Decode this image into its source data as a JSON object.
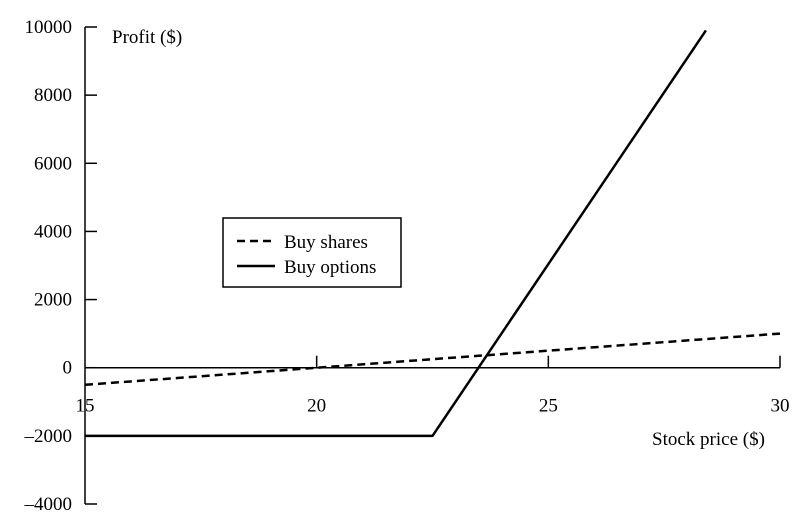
{
  "chart_data": {
    "type": "line",
    "xlabel": "Stock price ($)",
    "ylabel": "Profit ($)",
    "xlim": [
      15,
      30
    ],
    "ylim": [
      -4000,
      10000
    ],
    "x_ticks": [
      "15",
      "20",
      "25",
      "30"
    ],
    "x_tick_values": [
      15,
      20,
      25,
      30
    ],
    "y_ticks": [
      "10000",
      "8000",
      "6000",
      "4000",
      "2000",
      "0",
      "–2000",
      "–4000"
    ],
    "y_tick_values": [
      10000,
      8000,
      6000,
      4000,
      2000,
      0,
      -2000,
      -4000
    ],
    "grid": false,
    "legend_position": "center-left",
    "series": [
      {
        "name": "Buy shares",
        "style": "dashed",
        "color": "#000000",
        "points": [
          [
            15,
            -500
          ],
          [
            30,
            1000
          ]
        ]
      },
      {
        "name": "Buy options",
        "style": "solid",
        "color": "#000000",
        "points": [
          [
            15,
            -2000
          ],
          [
            22.5,
            -2000
          ],
          [
            28.4,
            9900
          ]
        ]
      }
    ]
  }
}
